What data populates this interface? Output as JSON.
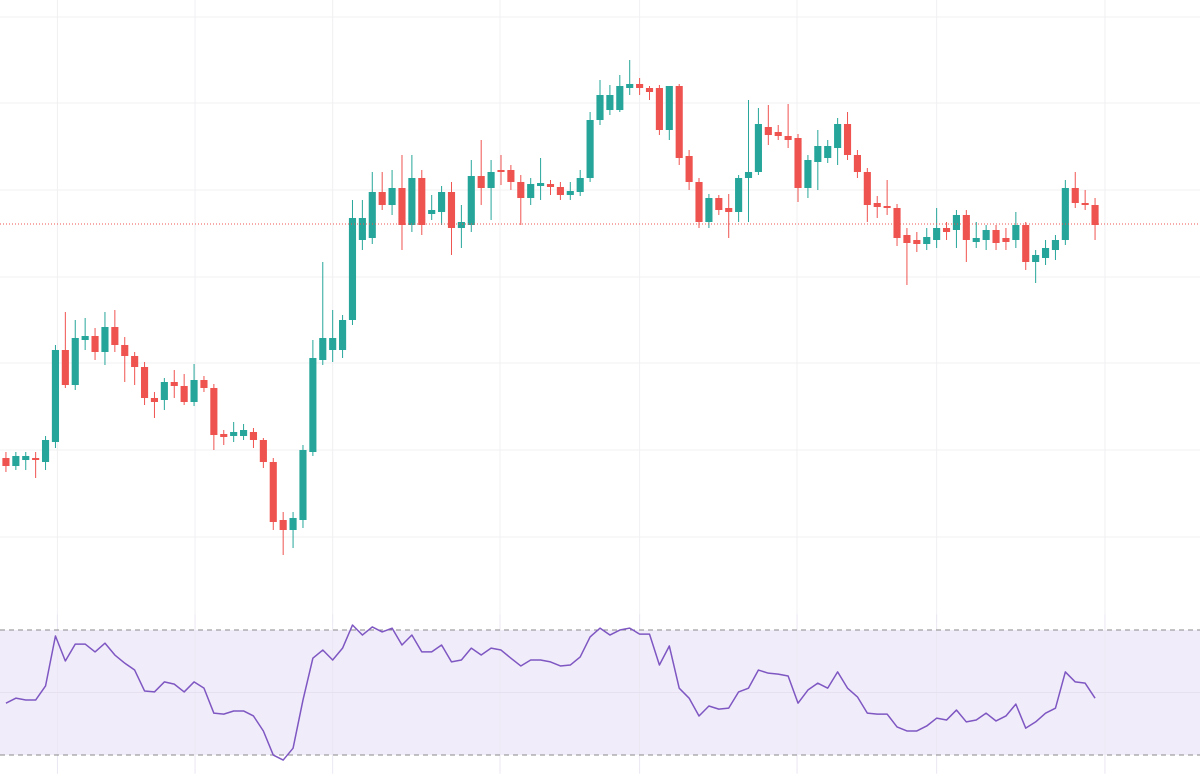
{
  "chart_data": [
    {
      "type": "candlestick",
      "categories": [
        null,
        null,
        null,
        null,
        null,
        null,
        null,
        null,
        null,
        null,
        null,
        null,
        null,
        null,
        null,
        null,
        null,
        null,
        null,
        null,
        null,
        null,
        null,
        null,
        null,
        null,
        null,
        null,
        null,
        null,
        null,
        null,
        null,
        null,
        null,
        null,
        null,
        null,
        null,
        null,
        null,
        null,
        null,
        null,
        null,
        null,
        null,
        null,
        null,
        null,
        null,
        null,
        null,
        null,
        null,
        null,
        null,
        null,
        null,
        null,
        null,
        null,
        null,
        null,
        null,
        null,
        null,
        null,
        null,
        null,
        null,
        null,
        null,
        null,
        null,
        null,
        null,
        null,
        null,
        null,
        null,
        null,
        null,
        null,
        null,
        null,
        null,
        null,
        null,
        null,
        null,
        null,
        null,
        null,
        null,
        null,
        null,
        null,
        null,
        null,
        null,
        null,
        null,
        null,
        null,
        null,
        null,
        null,
        null,
        null,
        null
      ],
      "open": [
        165,
        157,
        163,
        165,
        161,
        181,
        273,
        238,
        283,
        287,
        271,
        296,
        278,
        267,
        256,
        225,
        223,
        241,
        237,
        221,
        243,
        235,
        189,
        187,
        187,
        191,
        183,
        161,
        103,
        93,
        103,
        171,
        263,
        273,
        273,
        303,
        383,
        385,
        431,
        418,
        435,
        398,
        445,
        409,
        411,
        431,
        395,
        398,
        447,
        435,
        453,
        453,
        441,
        425,
        437,
        439,
        436,
        428,
        431,
        445,
        503,
        513,
        513,
        535,
        539,
        535,
        535,
        493,
        537,
        467,
        441,
        401,
        425,
        415,
        411,
        445,
        451,
        496,
        491,
        487,
        485,
        435,
        461,
        465,
        475,
        499,
        468,
        451,
        420,
        417,
        415,
        388,
        383,
        379,
        383,
        395,
        393,
        408,
        381,
        383,
        393,
        385,
        383,
        398,
        361,
        365,
        373,
        383,
        435,
        420,
        418
      ],
      "high": [
        171,
        171,
        171,
        171,
        187,
        278,
        311,
        303,
        305,
        295,
        311,
        313,
        286,
        271,
        261,
        231,
        245,
        253,
        249,
        259,
        247,
        239,
        193,
        201,
        199,
        195,
        185,
        165,
        111,
        111,
        178,
        283,
        361,
        313,
        308,
        423,
        423,
        451,
        451,
        453,
        468,
        468,
        453,
        428,
        437,
        441,
        418,
        463,
        483,
        463,
        468,
        458,
        448,
        445,
        465,
        443,
        441,
        441,
        453,
        511,
        543,
        538,
        548,
        563,
        545,
        537,
        538,
        537,
        539,
        473,
        445,
        429,
        428,
        429,
        448,
        523,
        515,
        518,
        498,
        519,
        489,
        468,
        493,
        483,
        505,
        511,
        473,
        455,
        427,
        443,
        419,
        395,
        391,
        395,
        415,
        401,
        413,
        413,
        401,
        398,
        398,
        395,
        411,
        401,
        373,
        383,
        388,
        443,
        451,
        433,
        425
      ],
      "low": [
        151,
        153,
        153,
        145,
        153,
        175,
        235,
        233,
        273,
        263,
        258,
        271,
        241,
        238,
        218,
        205,
        213,
        225,
        218,
        217,
        231,
        173,
        178,
        181,
        183,
        175,
        155,
        93,
        68,
        75,
        95,
        167,
        258,
        261,
        265,
        298,
        373,
        379,
        413,
        408,
        373,
        391,
        388,
        403,
        398,
        368,
        375,
        391,
        418,
        403,
        438,
        433,
        398,
        418,
        423,
        428,
        423,
        423,
        427,
        441,
        498,
        508,
        511,
        528,
        528,
        523,
        488,
        483,
        458,
        433,
        395,
        395,
        408,
        385,
        401,
        401,
        448,
        478,
        483,
        475,
        421,
        425,
        433,
        460,
        458,
        463,
        445,
        401,
        405,
        408,
        377,
        338,
        371,
        373,
        375,
        383,
        375,
        361,
        375,
        373,
        373,
        373,
        375,
        353,
        340,
        358,
        363,
        378,
        415,
        413,
        383
      ],
      "close": [
        157,
        167,
        167,
        163,
        183,
        273,
        238,
        285,
        287,
        271,
        296,
        278,
        267,
        256,
        225,
        221,
        241,
        237,
        221,
        243,
        235,
        188,
        186,
        191,
        193,
        183,
        161,
        101,
        93,
        105,
        173,
        265,
        285,
        285,
        303,
        405,
        405,
        431,
        418,
        435,
        398,
        445,
        398,
        413,
        431,
        395,
        401,
        447,
        435,
        451,
        451,
        441,
        425,
        439,
        440,
        436,
        428,
        432,
        445,
        503,
        528,
        528,
        537,
        539,
        535,
        531,
        493,
        537,
        465,
        441,
        401,
        425,
        413,
        411,
        445,
        451,
        499,
        488,
        487,
        483,
        435,
        463,
        477,
        477,
        499,
        468,
        451,
        418,
        416,
        415,
        385,
        380,
        379,
        386,
        395,
        391,
        408,
        383,
        385,
        393,
        380,
        381,
        398,
        361,
        368,
        375,
        383,
        435,
        420,
        418,
        398
      ],
      "up_color": "#26a69a",
      "down_color": "#ef5350",
      "price_line": 399,
      "price_line_color": "#ef5350",
      "xlim": [
        -0.6,
        120.6
      ],
      "xticks": [
        5.2,
        19.1,
        33,
        49.9,
        64,
        79.9,
        94,
        111
      ],
      "ylim": [
        0,
        623
      ],
      "yticks": [
        86,
        173,
        260,
        346,
        433,
        520,
        606
      ],
      "grid": true
    },
    {
      "type": "line",
      "name": "RSI",
      "color": "#7e57c2",
      "band_color": "#f1ecfa",
      "values": [
        46.6,
        48.2,
        47.6,
        47.6,
        52.1,
        68.1,
        60.1,
        65.5,
        65.5,
        63.0,
        65.8,
        62.0,
        59.4,
        57.2,
        50.5,
        50.2,
        53.4,
        52.7,
        50.2,
        53.4,
        51.4,
        43.4,
        43.1,
        44.1,
        44.1,
        42.5,
        37.7,
        30.0,
        28.4,
        32.2,
        47.6,
        61.0,
        63.6,
        60.4,
        64.2,
        71.6,
        68.4,
        71.0,
        69.4,
        70.6,
        65.2,
        68.4,
        63.0,
        63.0,
        65.2,
        59.8,
        60.4,
        64.2,
        62.0,
        64.2,
        63.6,
        61.0,
        58.5,
        60.4,
        60.4,
        59.8,
        58.5,
        58.8,
        61.4,
        67.8,
        70.6,
        68.4,
        70.0,
        70.6,
        68.7,
        68.7,
        58.8,
        64.9,
        51.4,
        48.2,
        42.5,
        45.7,
        44.7,
        45.0,
        50.2,
        51.4,
        57.2,
        56.2,
        55.9,
        55.3,
        46.6,
        50.8,
        53.0,
        51.4,
        56.6,
        51.4,
        48.6,
        43.4,
        43.1,
        43.1,
        39.0,
        37.7,
        37.7,
        39.3,
        41.8,
        41.2,
        44.4,
        40.6,
        41.2,
        43.4,
        40.9,
        42.5,
        46.3,
        38.6,
        40.6,
        43.4,
        45.0,
        56.6,
        53.4,
        53.0,
        48.2
      ],
      "xlim": [
        -0.6,
        120.6
      ],
      "xticks": [
        5.2,
        19.1,
        33,
        49.9,
        64,
        79.9,
        94,
        111
      ],
      "ylim": [
        24,
        75
      ],
      "yticks": [
        30,
        50,
        70
      ],
      "grid": true
    }
  ]
}
